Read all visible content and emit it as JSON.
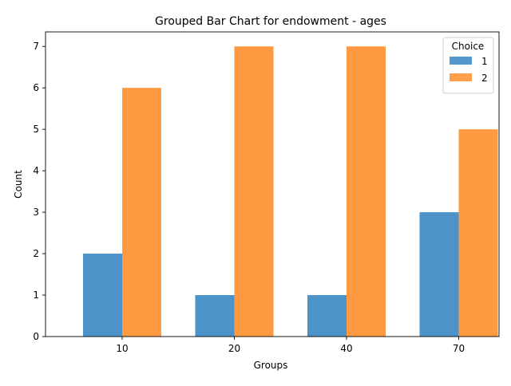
{
  "chart_data": {
    "type": "bar",
    "title": "Grouped Bar Chart for endowment - ages",
    "xlabel": "Groups",
    "ylabel": "Count",
    "categories": [
      "10",
      "20",
      "40",
      "70"
    ],
    "series": [
      {
        "name": "1",
        "values": [
          2,
          1,
          1,
          3
        ],
        "color": "#4b93c8"
      },
      {
        "name": "2",
        "values": [
          6,
          7,
          7,
          5
        ],
        "color": "#ff9a42"
      }
    ],
    "ylim": [
      0,
      7.35
    ],
    "yticks": [
      0,
      1,
      2,
      3,
      4,
      5,
      6,
      7
    ],
    "grid": false,
    "legend": {
      "title": "Choice",
      "placement": "top-right"
    }
  }
}
